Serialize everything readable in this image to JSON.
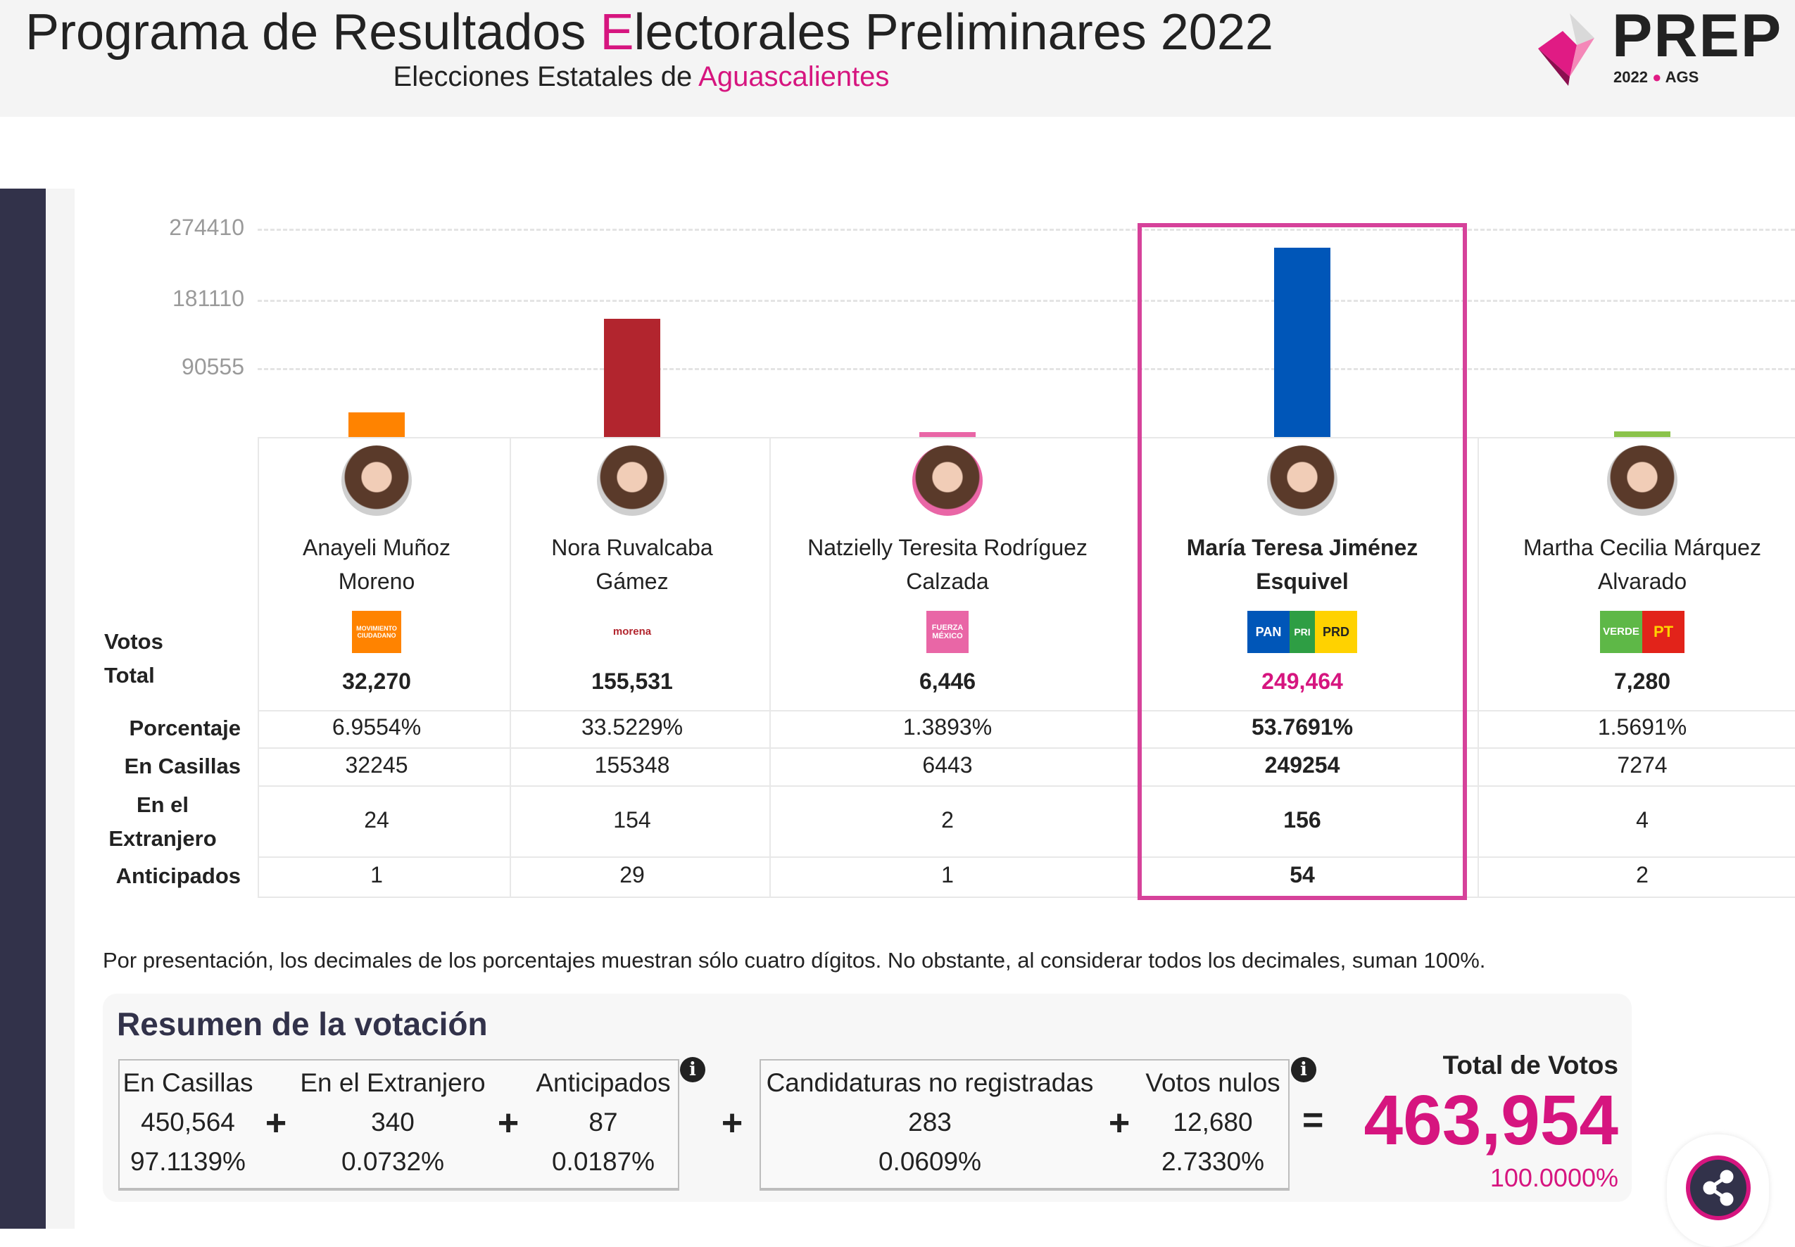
{
  "header": {
    "title_pre": "Programa de Resultados ",
    "title_hl": "E",
    "title_post": "lectorales Preliminares 2022",
    "subtitle_pre": "Elecciones Estatales de ",
    "subtitle_hl": "Aguascalientes",
    "logo_text": "PREP",
    "logo_year": "2022",
    "logo_place": "AGS"
  },
  "chart_data": {
    "type": "bar",
    "ylim": [
      0,
      285000
    ],
    "yticks": [
      "274410",
      "181110",
      "90555"
    ],
    "grid": true,
    "categories": [
      "Anayeli Muñoz Moreno",
      "Nora Ruvalcaba Gámez",
      "Natzielly Teresita Rodríguez Calzada",
      "María Teresa Jiménez Esquivel",
      "Martha Cecilia Márquez Alvarado"
    ],
    "values": [
      32270,
      155531,
      6446,
      249464,
      7280
    ],
    "colors": [
      "#ff8300",
      "#b2252e",
      "#e966a6",
      "#0056b8",
      "#8bc34a"
    ]
  },
  "row_labels": {
    "votos": "Votos",
    "total": "Total",
    "porcentaje": "Porcentaje",
    "casillas": "En Casillas",
    "extranjero1": "En el",
    "extranjero2": "Extranjero",
    "anticipados": "Anticipados"
  },
  "candidates": [
    {
      "name1": "Anayeli Muñoz",
      "name2": "Moreno",
      "parties": [
        "MOVIMIENTO CIUDADANO"
      ],
      "total": "32,270",
      "pct": "6.9554%",
      "casillas": "32245",
      "extranjero": "24",
      "anticipados": "1"
    },
    {
      "name1": "Nora Ruvalcaba",
      "name2": "Gámez",
      "parties": [
        "morena"
      ],
      "total": "155,531",
      "pct": "33.5229%",
      "casillas": "155348",
      "extranjero": "154",
      "anticipados": "29"
    },
    {
      "name1": "Natzielly Teresita Rodríguez",
      "name2": "Calzada",
      "parties": [
        "FUERZA MÉXICO"
      ],
      "total": "6,446",
      "pct": "1.3893%",
      "casillas": "6443",
      "extranjero": "2",
      "anticipados": "1"
    },
    {
      "name1": "María Teresa Jiménez",
      "name2": "Esquivel",
      "parties": [
        "PAN",
        "PRI",
        "PRD"
      ],
      "total": "249,464",
      "pct": "53.7691%",
      "casillas": "249254",
      "extranjero": "156",
      "anticipados": "54",
      "winner": true
    },
    {
      "name1": "Martha Cecilia Márquez",
      "name2": "Alvarado",
      "parties": [
        "VERDE",
        "PT"
      ],
      "total": "7,280",
      "pct": "1.5691%",
      "casillas": "7274",
      "extranjero": "4",
      "anticipados": "2"
    }
  ],
  "note": "Por presentación, los decimales de los porcentajes muestran sólo cuatro dígitos. No obstante, al considerar todos los decimales, suman 100%.",
  "summary": {
    "title": "Resumen de la votación",
    "items": [
      {
        "label": "En Casillas",
        "value": "450,564",
        "pct": "97.1139%"
      },
      {
        "label": "En el Extranjero",
        "value": "340",
        "pct": "0.0732%"
      },
      {
        "label": "Anticipados",
        "value": "87",
        "pct": "0.0187%"
      },
      {
        "label": "Candidaturas no registradas",
        "value": "283",
        "pct": "0.0609%"
      },
      {
        "label": "Votos nulos",
        "value": "12,680",
        "pct": "2.7330%"
      }
    ],
    "plus": "+",
    "equals": "=",
    "info": "i",
    "total_label": "Total de Votos",
    "total_value": "463,954",
    "total_pct": "100.0000%"
  },
  "accent": "#d6157f"
}
